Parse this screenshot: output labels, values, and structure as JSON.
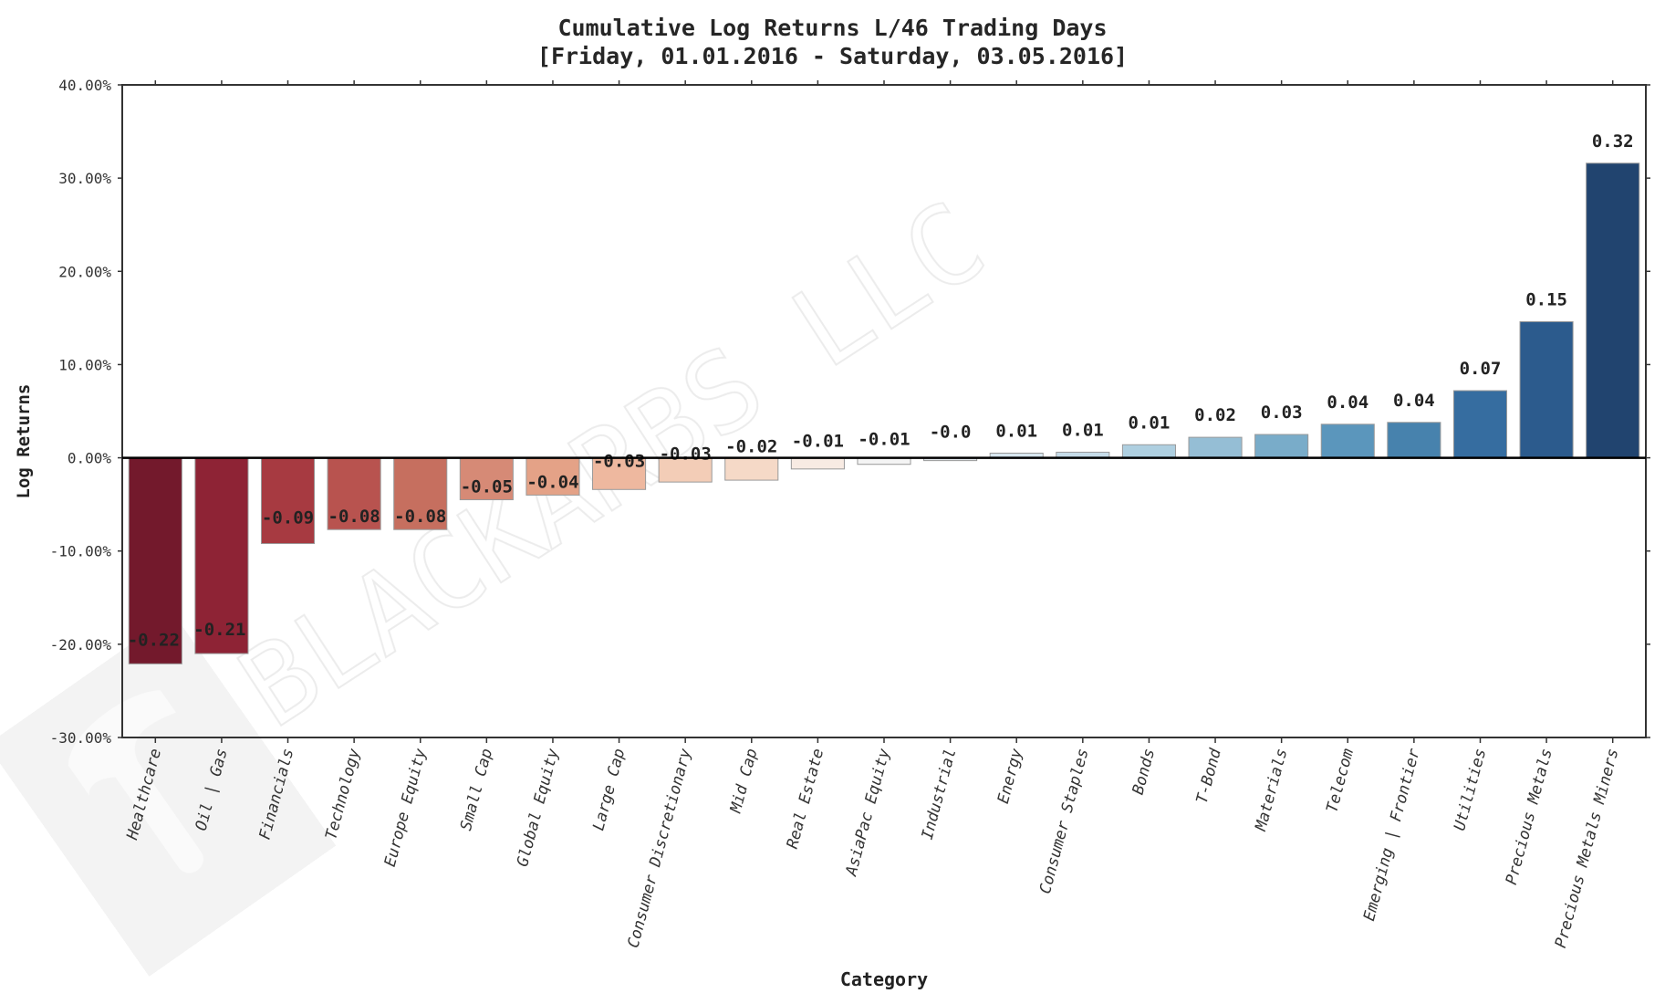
{
  "chart_data": {
    "type": "bar",
    "title": "Cumulative Log Returns L/46 Trading Days",
    "subtitle": "[Friday, 01.01.2016 - Saturday, 03.05.2016]",
    "xlabel": "Category",
    "ylabel": "Log Returns",
    "ylim": [
      -0.3,
      0.4
    ],
    "yticks": [
      -0.3,
      -0.2,
      -0.1,
      0.0,
      0.1,
      0.2,
      0.3,
      0.4
    ],
    "ytick_labels": [
      "-30.00%",
      "-20.00%",
      "-10.00%",
      "0.00%",
      "10.00%",
      "20.00%",
      "30.00%",
      "40.00%"
    ],
    "grid": false,
    "legend": null,
    "watermark": "BLACKARBS LLC",
    "categories": [
      "Healthcare",
      "Oil | Gas",
      "Financials",
      "Technology",
      "Europe Equity",
      "Small Cap",
      "Global Equity",
      "Large Cap",
      "Consumer Discretionary",
      "Mid Cap",
      "Real Estate",
      "AsiaPac Equity",
      "Industrial",
      "Energy",
      "Consumer Staples",
      "Bonds",
      "T-Bond",
      "Materials",
      "Telecom",
      "Emerging | Frontier",
      "Utilities",
      "Precious Metals",
      "Precious Metals Miners"
    ],
    "values": [
      -0.221,
      -0.21,
      -0.092,
      -0.077,
      -0.077,
      -0.045,
      -0.04,
      -0.034,
      -0.026,
      -0.024,
      -0.012,
      -0.007,
      -0.003,
      0.005,
      0.006,
      0.014,
      0.022,
      0.025,
      0.036,
      0.038,
      0.072,
      0.146,
      0.316
    ],
    "value_labels": [
      "-0.22",
      "-0.21",
      "-0.09",
      "-0.08",
      "-0.08",
      "-0.05",
      "-0.04",
      "-0.03",
      "-0.03",
      "-0.02",
      "-0.01",
      "-0.01",
      "-0.0",
      "0.01",
      "0.01",
      "0.01",
      "0.02",
      "0.03",
      "0.04",
      "0.04",
      "0.07",
      "0.15",
      "0.32"
    ],
    "colors": [
      "#73192c",
      "#8e2335",
      "#a73a41",
      "#b8534f",
      "#c66f5f",
      "#d68a76",
      "#e4a287",
      "#eeb89f",
      "#f3cdb7",
      "#f5d9c7",
      "#f8ebe3",
      "#f4f4f4",
      "#e3e8ec",
      "#d7e6ef",
      "#c5dbe8",
      "#aecfe0",
      "#95bed5",
      "#79acc9",
      "#5b96bc",
      "#4782ad",
      "#366da0",
      "#2c5b8d",
      "#21446f"
    ]
  }
}
